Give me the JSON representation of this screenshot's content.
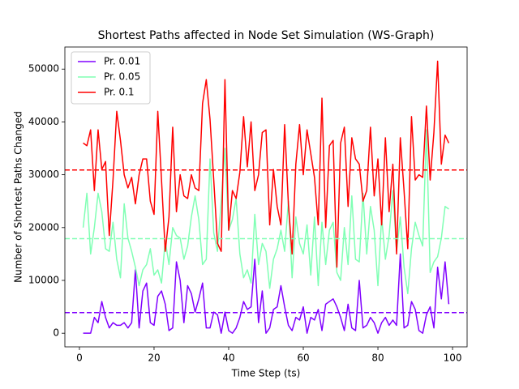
{
  "chart_data": {
    "type": "line",
    "title": "Shortest Paths affected in Node Set Simulation (WS-Graph)",
    "x_label": "Time Step (ts)",
    "y_label": "Number of Shortest Paths Changed",
    "x": [
      1,
      2,
      3,
      4,
      5,
      6,
      7,
      8,
      9,
      10,
      11,
      12,
      13,
      14,
      15,
      16,
      17,
      18,
      19,
      20,
      21,
      22,
      23,
      24,
      25,
      26,
      27,
      28,
      29,
      30,
      31,
      32,
      33,
      34,
      35,
      36,
      37,
      38,
      39,
      40,
      41,
      42,
      43,
      44,
      45,
      46,
      47,
      48,
      49,
      50,
      51,
      52,
      53,
      54,
      55,
      56,
      57,
      58,
      59,
      60,
      61,
      62,
      63,
      64,
      65,
      66,
      67,
      68,
      69,
      70,
      71,
      72,
      73,
      74,
      75,
      76,
      77,
      78,
      79,
      80,
      81,
      82,
      83,
      84,
      85,
      86,
      87,
      88,
      89,
      90,
      91,
      92,
      93,
      94,
      95,
      96,
      97,
      98,
      99
    ],
    "series": [
      {
        "name": "Pr. 0.01",
        "color": "#8000ff",
        "values": [
          0,
          0,
          0,
          3000,
          2000,
          6000,
          3000,
          1000,
          2000,
          1500,
          1500,
          2000,
          1000,
          2000,
          12000,
          1000,
          8000,
          9500,
          2000,
          1500,
          7000,
          8000,
          5500,
          500,
          1000,
          13500,
          10000,
          2000,
          9000,
          7500,
          4000,
          6500,
          9500,
          1000,
          1000,
          4000,
          3500,
          0,
          4000,
          500,
          0,
          1000,
          3000,
          6000,
          4500,
          5000,
          14000,
          2000,
          8000,
          0,
          1000,
          4500,
          5000,
          9000,
          5000,
          1500,
          500,
          3000,
          2500,
          5000,
          0,
          3000,
          2500,
          4500,
          500,
          5500,
          6000,
          6500,
          5000,
          3000,
          500,
          5500,
          1000,
          500,
          10000,
          1000,
          1500,
          3000,
          2000,
          0,
          2000,
          3000,
          1500,
          2500,
          1500,
          15000,
          1000,
          1500,
          6000,
          4500,
          500,
          0,
          3500,
          5000,
          1000,
          12500,
          6500,
          13500,
          5500
        ]
      },
      {
        "name": "Pr. 0.05",
        "color": "#80ffb4",
        "values": [
          20000,
          26500,
          15000,
          20000,
          26500,
          23000,
          16000,
          15500,
          21000,
          14000,
          10500,
          24500,
          18000,
          15500,
          12500,
          9000,
          12000,
          13000,
          16000,
          11000,
          12000,
          9500,
          17500,
          13000,
          20000,
          18500,
          18000,
          14000,
          16500,
          22000,
          26000,
          21500,
          13000,
          14000,
          33000,
          19000,
          15500,
          25000,
          35000,
          19500,
          21500,
          25500,
          15000,
          10500,
          12000,
          9500,
          22500,
          13000,
          17000,
          15500,
          8500,
          14000,
          16000,
          19500,
          15500,
          25000,
          10500,
          22000,
          17000,
          15000,
          20500,
          11000,
          22000,
          9000,
          21000,
          13000,
          19500,
          21000,
          11500,
          10000,
          20000,
          13000,
          26000,
          14000,
          13500,
          26500,
          15000,
          24000,
          19500,
          9000,
          22000,
          14000,
          18500,
          27000,
          15500,
          22000,
          12500,
          7500,
          16000,
          21000,
          18500,
          16500,
          38500,
          11500,
          13500,
          14500,
          18000,
          24000,
          23500
        ]
      },
      {
        "name": "Pr. 0.1",
        "color": "#ff0000",
        "values": [
          36000,
          35500,
          38500,
          27000,
          38500,
          31000,
          32500,
          18500,
          29000,
          42000,
          36500,
          30000,
          27500,
          29500,
          24500,
          30000,
          33000,
          33000,
          25000,
          22500,
          42000,
          29000,
          15500,
          22000,
          39000,
          23000,
          30000,
          26000,
          25500,
          30000,
          27500,
          27000,
          43500,
          48000,
          40500,
          29000,
          17000,
          15500,
          48000,
          19500,
          27000,
          25500,
          30500,
          41000,
          31500,
          40000,
          27000,
          30000,
          38000,
          38500,
          20500,
          31000,
          24000,
          20500,
          39500,
          24500,
          15000,
          32000,
          39500,
          30000,
          38500,
          34000,
          29500,
          20500,
          44500,
          20000,
          35500,
          36500,
          12500,
          36000,
          39000,
          24000,
          37000,
          33000,
          32000,
          25000,
          27000,
          39000,
          26000,
          33000,
          20500,
          37000,
          23000,
          32000,
          15000,
          37000,
          27000,
          16000,
          41000,
          29000,
          30000,
          29500,
          43000,
          29000,
          38000,
          51500,
          32000,
          37500,
          36000
        ]
      }
    ],
    "hlines": [
      {
        "value": 3900,
        "color": "#8000ff"
      },
      {
        "value": 17900,
        "color": "#80ffb4"
      },
      {
        "value": 30900,
        "color": "#ff0000"
      }
    ],
    "xlim": [
      -3.9,
      103.9
    ],
    "xticks": [
      0,
      20,
      40,
      60,
      80,
      100
    ],
    "ylim": [
      -2580,
      54180
    ],
    "yticks": [
      0,
      10000,
      20000,
      30000,
      40000,
      50000
    ],
    "legend": "upper left"
  }
}
